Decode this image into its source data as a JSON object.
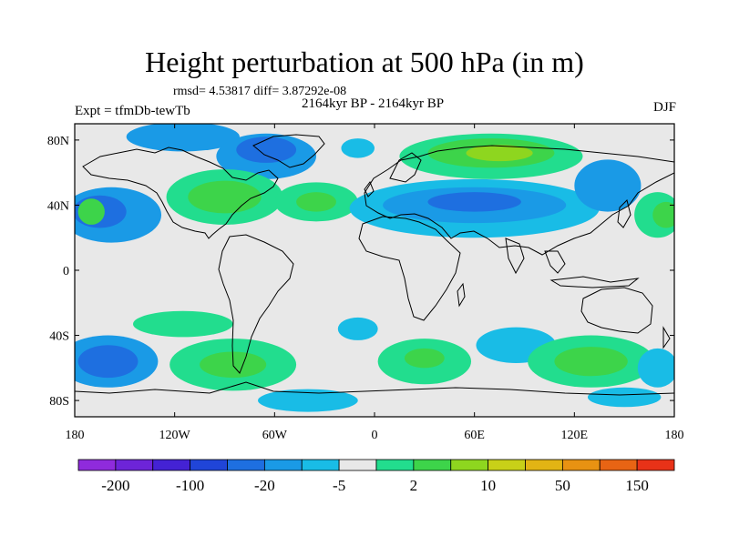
{
  "title": "Height perturbation at 500 hPa (in m)",
  "stats_text": "rmsd= 4.53817 diff= 3.87292e-08",
  "experiment": "Expt = tfmDb-tewTb",
  "period": "2164kyr BP - 2164kyr BP",
  "season": "DJF",
  "lat_ticks": [
    "80N",
    "40N",
    "0",
    "40S",
    "80S"
  ],
  "lon_ticks": [
    "180",
    "120W",
    "60W",
    "0",
    "60E",
    "120E",
    "180"
  ],
  "colorbar": {
    "labels": [
      "-200",
      "-100",
      "-20",
      "-5",
      "2",
      "10",
      "50",
      "150"
    ],
    "colors": [
      "#8f2bdc",
      "#6d24d8",
      "#4422d4",
      "#2045d8",
      "#1e6fe0",
      "#1a9ae6",
      "#19bce6",
      "#e8e8e8",
      "#22dd8e",
      "#3dd44a",
      "#8ed61f",
      "#c8d018",
      "#e2b414",
      "#e89212",
      "#e86414",
      "#e83218"
    ]
  },
  "chart_data": {
    "type": "heatmap",
    "title": "Height perturbation at 500 hPa (in m)",
    "projection": "cylindrical-equidistant",
    "xlim": [
      -180,
      180
    ],
    "ylim": [
      -90,
      90
    ],
    "x_ticks": [
      -180,
      -120,
      -60,
      0,
      60,
      120,
      180
    ],
    "y_ticks": [
      80,
      40,
      0,
      -40,
      -80
    ],
    "background_color": "#e8e8e8",
    "features": [
      {
        "lon": -115,
        "lat": 82,
        "rx": 34,
        "ry": 9,
        "value": -10
      },
      {
        "lon": -65,
        "lat": 70,
        "rx": 30,
        "ry": 14,
        "value": -10
      },
      {
        "lon": -65,
        "lat": 74,
        "rx": 18,
        "ry": 8,
        "value": -20
      },
      {
        "lon": -10,
        "lat": 75,
        "rx": 10,
        "ry": 6,
        "value": -5
      },
      {
        "lon": 70,
        "lat": 70,
        "rx": 55,
        "ry": 14,
        "value": 5
      },
      {
        "lon": 70,
        "lat": 72,
        "rx": 38,
        "ry": 9,
        "value": 10
      },
      {
        "lon": 75,
        "lat": 72,
        "rx": 20,
        "ry": 5,
        "value": 20
      },
      {
        "lon": -90,
        "lat": 45,
        "rx": 35,
        "ry": 17,
        "value": 5
      },
      {
        "lon": -90,
        "lat": 45,
        "rx": 22,
        "ry": 10,
        "value": 10
      },
      {
        "lon": -35,
        "lat": 42,
        "rx": 25,
        "ry": 12,
        "value": 5
      },
      {
        "lon": -35,
        "lat": 42,
        "rx": 12,
        "ry": 6,
        "value": 10
      },
      {
        "lon": -158,
        "lat": 34,
        "rx": 30,
        "ry": 17,
        "value": -10
      },
      {
        "lon": -165,
        "lat": 36,
        "rx": 16,
        "ry": 10,
        "value": -20
      },
      {
        "lon": 60,
        "lat": 38,
        "rx": 75,
        "ry": 18,
        "value": -5
      },
      {
        "lon": 60,
        "lat": 40,
        "rx": 55,
        "ry": 11,
        "value": -10
      },
      {
        "lon": 60,
        "lat": 42,
        "rx": 28,
        "ry": 6,
        "value": -20
      },
      {
        "lon": 140,
        "lat": 52,
        "rx": 20,
        "ry": 16,
        "value": -10
      },
      {
        "lon": 170,
        "lat": 34,
        "rx": 14,
        "ry": 14,
        "value": 5
      },
      {
        "lon": 175,
        "lat": 34,
        "rx": 8,
        "ry": 8,
        "value": 10
      },
      {
        "lon": -170,
        "lat": 36,
        "rx": 8,
        "ry": 8,
        "value": 10
      },
      {
        "lon": -160,
        "lat": -56,
        "rx": 30,
        "ry": 16,
        "value": -10
      },
      {
        "lon": -160,
        "lat": -56,
        "rx": 18,
        "ry": 10,
        "value": -20
      },
      {
        "lon": -115,
        "lat": -33,
        "rx": 30,
        "ry": 8,
        "value": 5
      },
      {
        "lon": -85,
        "lat": -58,
        "rx": 38,
        "ry": 16,
        "value": 5
      },
      {
        "lon": -85,
        "lat": -58,
        "rx": 20,
        "ry": 8,
        "value": 10
      },
      {
        "lon": -10,
        "lat": -36,
        "rx": 12,
        "ry": 7,
        "value": -5
      },
      {
        "lon": 30,
        "lat": -56,
        "rx": 28,
        "ry": 14,
        "value": 5
      },
      {
        "lon": 30,
        "lat": -54,
        "rx": 12,
        "ry": 6,
        "value": 10
      },
      {
        "lon": 85,
        "lat": -46,
        "rx": 24,
        "ry": 11,
        "value": -5
      },
      {
        "lon": 130,
        "lat": -56,
        "rx": 38,
        "ry": 16,
        "value": 5
      },
      {
        "lon": 130,
        "lat": -56,
        "rx": 22,
        "ry": 9,
        "value": 10
      },
      {
        "lon": 170,
        "lat": -60,
        "rx": 12,
        "ry": 12,
        "value": -5
      },
      {
        "lon": -40,
        "lat": -80,
        "rx": 30,
        "ry": 7,
        "value": -5
      },
      {
        "lon": 150,
        "lat": -78,
        "rx": 22,
        "ry": 6,
        "value": -5
      }
    ]
  }
}
